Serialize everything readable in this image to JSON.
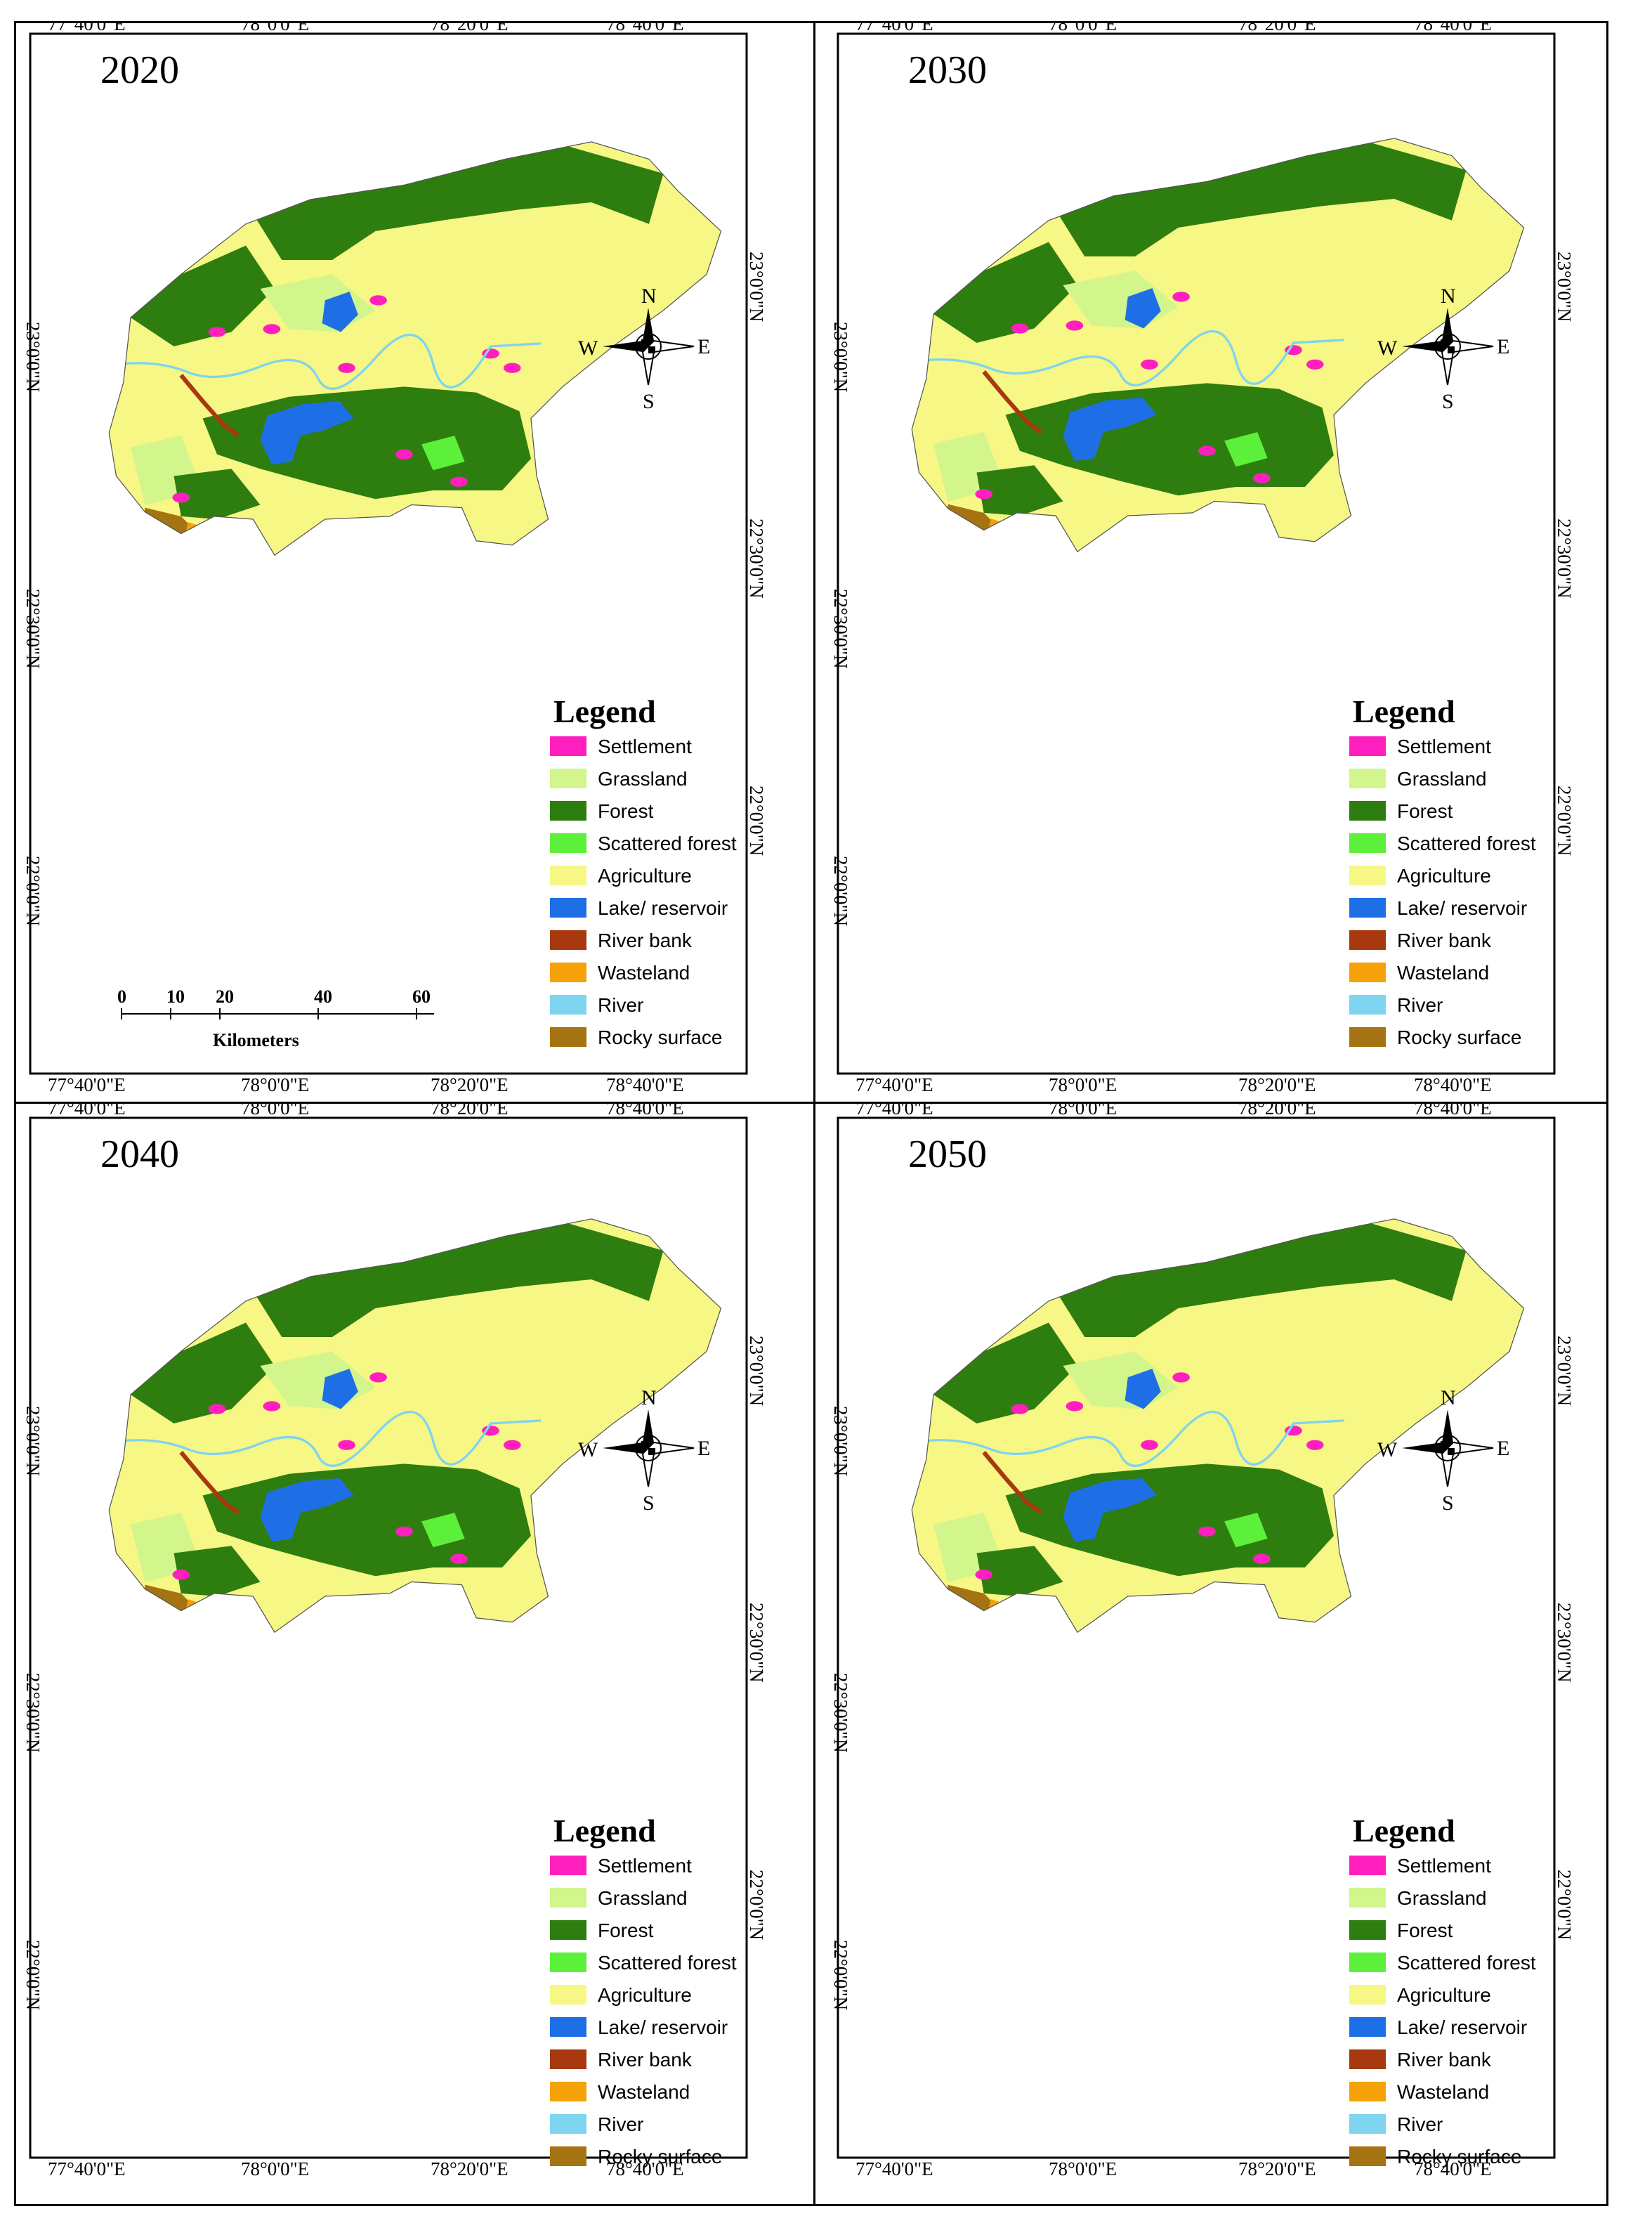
{
  "panels": [
    {
      "id": "p2020",
      "year": "2020",
      "top_ticks": [
        "77°40'0\"E",
        "78°0'0\"E",
        "78°20'0\"E",
        "78°40'0\"E"
      ],
      "bottom_ticks": [
        "77°40'0\"E",
        "78°0'0\"E",
        "78°20'0\"E",
        "78°40'0\"E"
      ],
      "left_ticks": [
        "23°0'0\"N",
        "22°30'0\"N",
        "22°0'0\"N"
      ],
      "right_ticks": [
        "23°0'0\"N",
        "22°30'0\"N",
        "22°0'0\"N"
      ]
    },
    {
      "id": "p2030",
      "year": "2030",
      "top_ticks": [
        "77°40'0\"E",
        "78°0'0\"E",
        "78°20'0\"E",
        "78°40'0\"E"
      ],
      "bottom_ticks": [
        "77°40'0\"E",
        "78°0'0\"E",
        "78°20'0\"E",
        "78°40'0\"E"
      ],
      "left_ticks": [
        "23°0'0\"N",
        "22°30'0\"N",
        "22°0'0\"N"
      ],
      "right_ticks": [
        "23°0'0\"N",
        "22°30'0\"N",
        "22°0'0\"N"
      ]
    },
    {
      "id": "p2040",
      "year": "2040",
      "top_ticks": [
        "77°40'0\"E",
        "78°0'0\"E",
        "78°20'0\"E",
        "78°40'0\"E"
      ],
      "bottom_ticks": [
        "77°40'0\"E",
        "78°0'0\"E",
        "78°20'0\"E",
        "78°40'0\"E"
      ],
      "left_ticks": [
        "23°0'0\"N",
        "22°30'0\"N",
        "22°0'0\"N"
      ],
      "right_ticks": [
        "23°0'0\"N",
        "22°30'0\"N",
        "22°0'0\"N"
      ]
    },
    {
      "id": "p2050",
      "year": "2050",
      "top_ticks": [
        "77°40'0\"E",
        "78°0'0\"E",
        "78°20'0\"E",
        "78°40'0\"E"
      ],
      "bottom_ticks": [
        "77°40'0\"E",
        "78°0'0\"E",
        "78°20'0\"E",
        "78°40'0\"E"
      ],
      "left_ticks": [
        "23°0'0\"N",
        "22°30'0\"N",
        "22°0'0\"N"
      ],
      "right_ticks": [
        "23°0'0\"N",
        "22°30'0\"N",
        "22°0'0\"N"
      ]
    }
  ],
  "legend": {
    "title": "Legend",
    "items": [
      {
        "label": "Settlement",
        "color": "#ff1fbf"
      },
      {
        "label": "Grassland",
        "color": "#d2f58c"
      },
      {
        "label": "Forest",
        "color": "#2e7d0f"
      },
      {
        "label": "Scattered forest",
        "color": "#5cf03a"
      },
      {
        "label": "Agriculture",
        "color": "#f6f785"
      },
      {
        "label": "Lake/ reservoir",
        "color": "#1e6fe6"
      },
      {
        "label": "River bank",
        "color": "#a8380f"
      },
      {
        "label": "Wasteland",
        "color": "#f5a20a"
      },
      {
        "label": "River",
        "color": "#7fd4ef"
      },
      {
        "label": "Rocky surface",
        "color": "#a67312"
      }
    ]
  },
  "compass": {
    "n": "N",
    "s": "S",
    "e": "E",
    "w": "W"
  },
  "scale_bar": {
    "ticks": [
      "0",
      "10",
      "20",
      "40",
      "60"
    ],
    "unit": "Kilometers"
  }
}
